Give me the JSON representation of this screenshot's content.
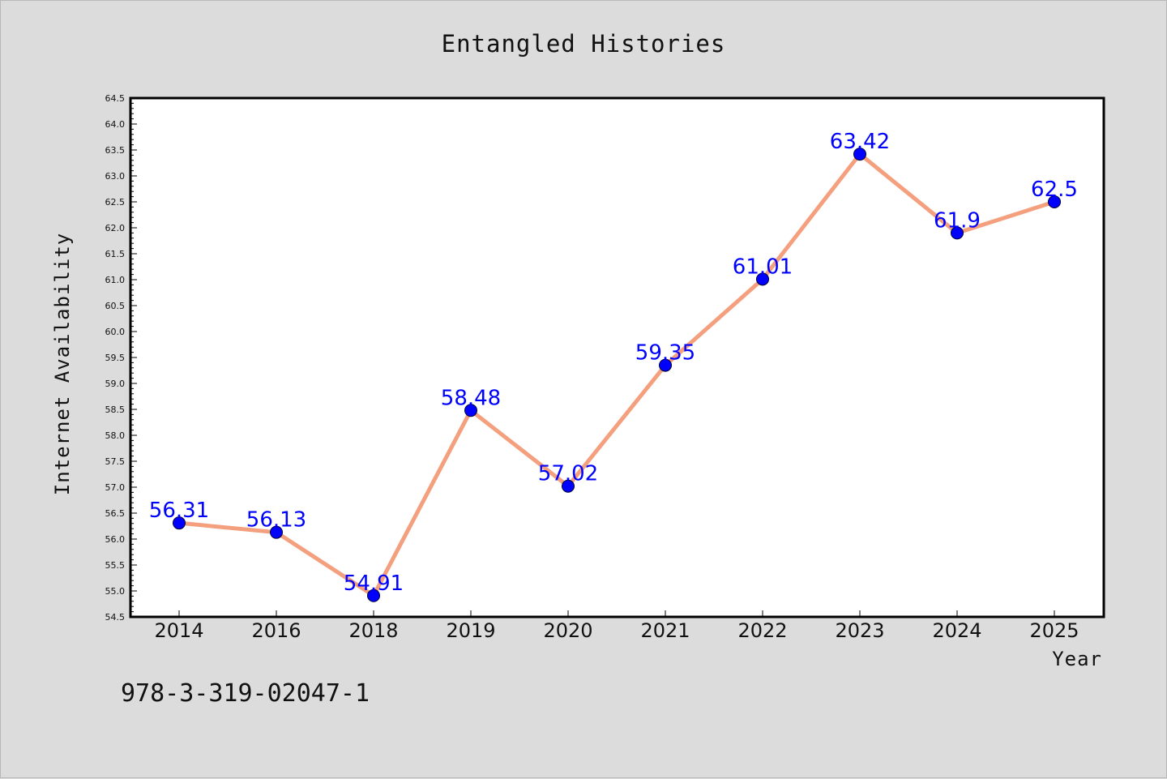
{
  "chart_data": {
    "type": "line",
    "title": "Entangled Histories",
    "xlabel": "Year",
    "ylabel": "Internet Availability",
    "categories": [
      "2014",
      "2016",
      "2018",
      "2019",
      "2020",
      "2021",
      "2022",
      "2023",
      "2024",
      "2025"
    ],
    "series": [
      {
        "values": [
          56.31,
          56.13,
          54.91,
          58.48,
          57.02,
          59.35,
          61.01,
          63.42,
          61.9,
          62.5
        ]
      }
    ],
    "data_labels": [
      "56.31",
      "56.13",
      "54.91",
      "58.48",
      "57.02",
      "59.35",
      "61.01",
      "63.42",
      "61.9",
      "62.5"
    ],
    "ylim": [
      54.5,
      64.5
    ],
    "yticks": [
      "54.5",
      "55.0",
      "55.5",
      "56.0",
      "56.5",
      "57.0",
      "57.5",
      "58.0",
      "58.5",
      "59.0",
      "59.5",
      "60.0",
      "60.5",
      "61.0",
      "61.5",
      "62.0",
      "62.5",
      "63.0",
      "63.5",
      "64.0",
      "64.5"
    ],
    "grid": false,
    "colors": {
      "line": "#f4a07e",
      "marker": "#0000ff",
      "label": "#0000ff",
      "background": "#dcdcdc",
      "plot_background": "#ffffff"
    }
  },
  "footer": {
    "isbn": "978-3-319-02047-1"
  }
}
